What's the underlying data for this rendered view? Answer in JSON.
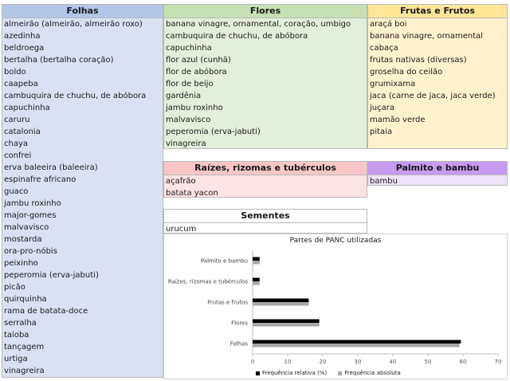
{
  "folhas": {
    "header": "Folhas",
    "items": [
      "almeirão (almeirão, almeirão roxo)",
      "azedinha",
      "beldroega",
      "bertalha (bertalha coração)",
      "boldo",
      "caapeba",
      "cambuquira de chuchu, de abóbora",
      "capuchinha",
      "caruru",
      "catalonia",
      "chaya",
      "confrei",
      "erva baleeira (baleeira)",
      "espinafre africano",
      "guaco",
      "jambu roxinho",
      "major-gomes",
      "malvavisco",
      "mostarda",
      "ora-pro-nóbis",
      "peixinho",
      "peperomia (erva-jabuti)",
      "picão",
      "quirquinha",
      "rama de batata-doce",
      "serralha",
      "taioba",
      "tançagem",
      "urtiga",
      "vinagreira"
    ]
  },
  "flores": {
    "header": "Flores",
    "items": [
      "banana vinagre, ornamental, coração, umbigo",
      "cambuquira de chuchu, de abóbora",
      "capuchinha",
      "flor azul (cunhã)",
      "flor de abóbora",
      "flor de beijo",
      "gardênia",
      "jambu roxinho",
      "malvavisco",
      "peperomia (erva-jabuti)",
      "vinagreira"
    ]
  },
  "frutas": {
    "header": "Frutas e Frutos",
    "items": [
      "araçá boi",
      "banana vinagre, ornamental",
      "cabaça",
      "frutas nativas (diversas)",
      "groselha do ceilão",
      "grumixama",
      "jaca (carne de jaca, jaca verde)",
      "juçara",
      "mamão verde",
      "pitaia"
    ]
  },
  "raizes": {
    "header": "Raízes, rizomas e tubérculos",
    "items": [
      "açafrão",
      "batata yacon"
    ]
  },
  "palmito": {
    "header": "Palmito e bambu",
    "items": [
      "bambu"
    ]
  },
  "sementes": {
    "header": "Sementes",
    "items": [
      "urucum"
    ]
  },
  "chart_data": {
    "type": "bar",
    "orientation": "horizontal",
    "title": "Partes de PANC utilizadas",
    "categories": [
      "Folhas",
      "Flores",
      "Frutas e frutos",
      "Raízes, rizomas e tubérculos",
      "Palmito e bambu"
    ],
    "series": [
      {
        "name": "Frequência relativa (%)",
        "values": [
          59.4,
          19,
          16,
          2,
          2
        ],
        "color": "#000000"
      },
      {
        "name": "Frequência absoluta",
        "values": [
          59,
          19,
          16,
          2,
          2
        ],
        "color": "#a6a6a6"
      }
    ],
    "xlim": [
      0,
      70
    ],
    "xticks": [
      0,
      10,
      20,
      30,
      40,
      50,
      60,
      70
    ],
    "legend_position": "bottom",
    "grid": false
  }
}
